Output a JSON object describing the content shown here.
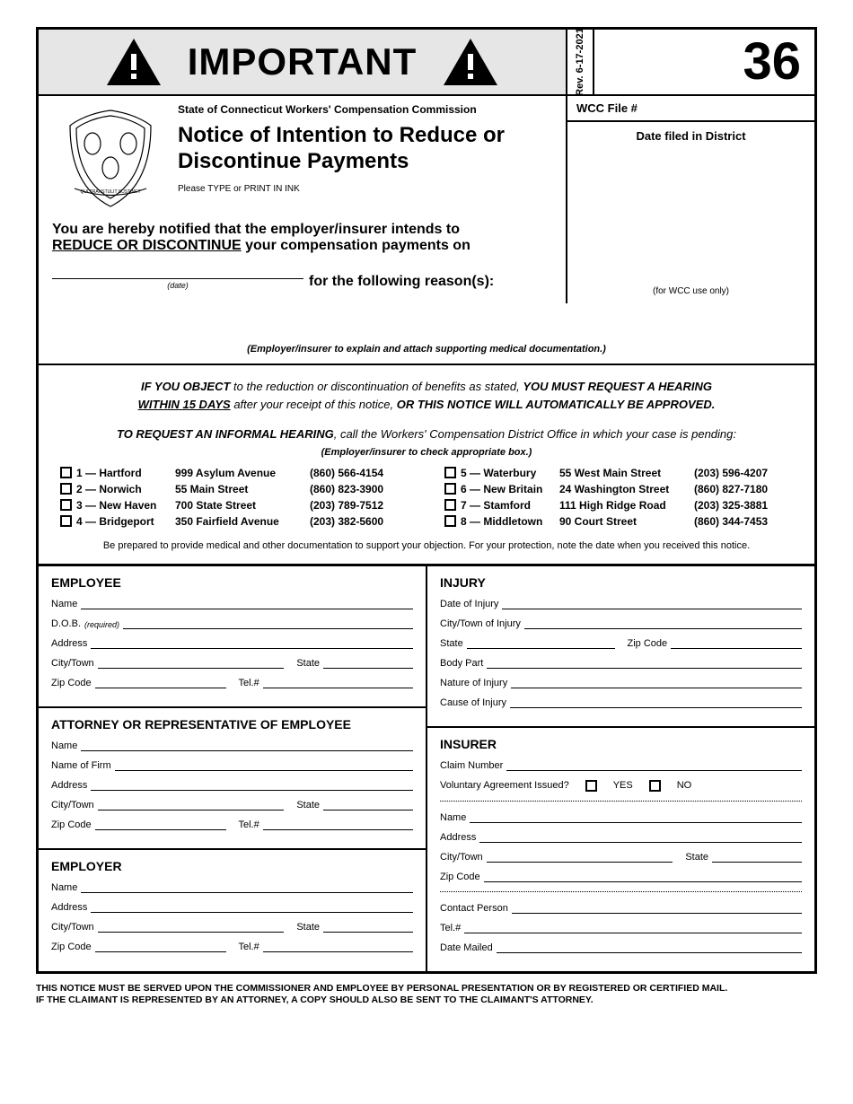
{
  "header": {
    "important": "IMPORTANT",
    "rev": "Rev. 6-17-2021",
    "form_number": "36"
  },
  "title_block": {
    "agency": "State of Connecticut Workers' Compensation Commission",
    "title": "Notice of Intention to Reduce or Discontinue Payments",
    "type_instr": "Please TYPE or PRINT IN INK",
    "notify1": "You are hereby notified that the employer/insurer intends to",
    "notify2": "REDUCE OR DISCONTINUE",
    "notify3": " your compensation payments on",
    "date_label": "(date)",
    "reason": "for the following reason(s):"
  },
  "right": {
    "wccfile": "WCC File #",
    "datefiled": "Date filed in District",
    "wcconly": "(for WCC use only)"
  },
  "explain": "(Employer/insurer to explain and attach supporting medical documentation.)",
  "objection": {
    "p1a": "IF YOU OBJECT",
    "p1b": " to the reduction or discontinuation of benefits as stated, ",
    "p1c": "YOU MUST REQUEST A HEARING ",
    "p1d": "WITHIN 15 DAYS",
    "p1e": " after your receipt of this notice, ",
    "p1f": "OR THIS NOTICE WILL AUTOMATICALLY BE APPROVED",
    "p1g": ".",
    "p2a": "TO REQUEST AN INFORMAL HEARING",
    "p2b": ", call the Workers' Compensation District Office in which your case is pending:",
    "check_instr": "(Employer/insurer to check appropriate box.)",
    "prep": "Be prepared to provide medical and other documentation to support your objection. For your protection, note the date when you received this notice."
  },
  "districts_left": [
    {
      "n": "1 — Hartford",
      "addr": "999 Asylum Avenue",
      "tel": "(860) 566-4154"
    },
    {
      "n": "2 — Norwich",
      "addr": "55 Main Street",
      "tel": "(860) 823-3900"
    },
    {
      "n": "3 — New Haven",
      "addr": "700 State Street",
      "tel": "(203) 789-7512"
    },
    {
      "n": "4 — Bridgeport",
      "addr": "350 Fairfield Avenue",
      "tel": "(203) 382-5600"
    }
  ],
  "districts_right": [
    {
      "n": "5 — Waterbury",
      "addr": "55 West Main Street",
      "tel": "(203) 596-4207"
    },
    {
      "n": "6 — New Britain",
      "addr": "24 Washington Street",
      "tel": "(860) 827-7180"
    },
    {
      "n": "7 — Stamford",
      "addr": "111 High Ridge Road",
      "tel": "(203) 325-3881"
    },
    {
      "n": "8 — Middletown",
      "addr": "90 Court Street",
      "tel": "(860) 344-7453"
    }
  ],
  "sections": {
    "employee": {
      "title": "EMPLOYEE",
      "name": "Name",
      "dob": "D.O.B.",
      "dob_req": "(required)",
      "address": "Address",
      "city": "City/Town",
      "state": "State",
      "zip": "Zip Code",
      "tel": "Tel.#"
    },
    "attorney": {
      "title": "ATTORNEY OR REPRESENTATIVE OF EMPLOYEE",
      "name": "Name",
      "firm": "Name of Firm",
      "address": "Address",
      "city": "City/Town",
      "state": "State",
      "zip": "Zip Code",
      "tel": "Tel.#"
    },
    "employer": {
      "title": "EMPLOYER",
      "name": "Name",
      "address": "Address",
      "city": "City/Town",
      "state": "State",
      "zip": "Zip Code",
      "tel": "Tel.#"
    },
    "injury": {
      "title": "INJURY",
      "doi": "Date of Injury",
      "city": "City/Town of Injury",
      "state": "State",
      "zip": "Zip Code",
      "body": "Body Part",
      "nature": "Nature of Injury",
      "cause": "Cause of Injury"
    },
    "insurer": {
      "title": "INSURER",
      "claim": "Claim Number",
      "va": "Voluntary Agreement Issued?",
      "yes": "YES",
      "no": "NO",
      "name": "Name",
      "address": "Address",
      "city": "City/Town",
      "state": "State",
      "zip": "Zip Code",
      "contact": "Contact Person",
      "tel": "Tel.#",
      "mailed": "Date Mailed"
    }
  },
  "footer1": "THIS NOTICE MUST BE SERVED UPON THE COMMISSIONER AND EMPLOYEE BY PERSONAL PRESENTATION OR BY REGISTERED OR CERTIFIED MAIL.",
  "footer2": "IF THE CLAIMANT IS REPRESENTED BY AN ATTORNEY,  A COPY SHOULD ALSO BE SENT TO THE CLAIMANT'S ATTORNEY."
}
